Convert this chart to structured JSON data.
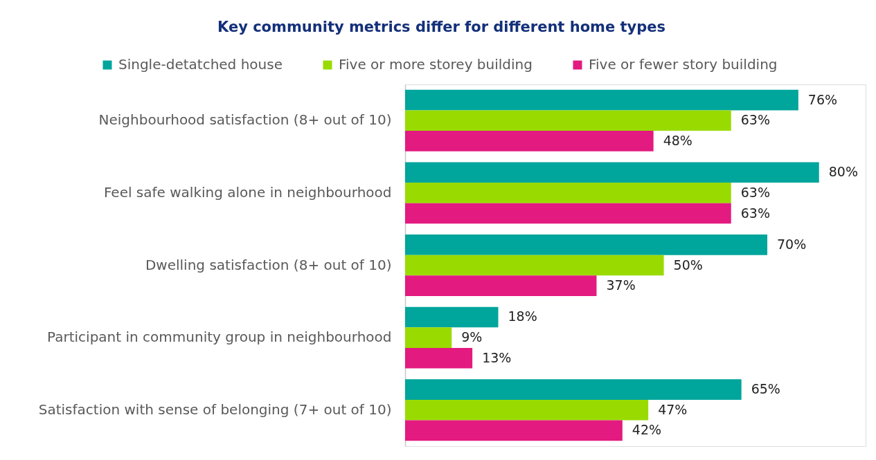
{
  "chart_data": {
    "type": "bar",
    "orientation": "horizontal",
    "title": "Key community metrics differ for different home types",
    "categories": [
      "Neighbourhood satisfaction (8+ out of 10)",
      "Feel safe walking alone in neighbourhood",
      "Dwelling satisfaction (8+ out of 10)",
      "Participant in community group in neighbourhood",
      "Satisfaction with sense of belonging (7+ out of 10)"
    ],
    "series": [
      {
        "name": "Single-detatched house",
        "color": "#00a59c",
        "values": [
          76,
          80,
          70,
          18,
          65
        ],
        "value_labels": [
          "76%",
          "80%",
          "70%",
          "18%",
          "65%"
        ]
      },
      {
        "name": "Five or more storey building",
        "color": "#99db00",
        "values": [
          63,
          63,
          50,
          9,
          47
        ],
        "value_labels": [
          "63%",
          "63%",
          "50%",
          "9%",
          "47%"
        ]
      },
      {
        "name": "Five or fewer story building",
        "color": "#e31a80",
        "values": [
          48,
          63,
          37,
          13,
          42
        ],
        "value_labels": [
          "48%",
          "63%",
          "37%",
          "13%",
          "42%"
        ]
      }
    ],
    "xlim": [
      0,
      89
    ],
    "tick_labels": "y",
    "legend": "top"
  }
}
